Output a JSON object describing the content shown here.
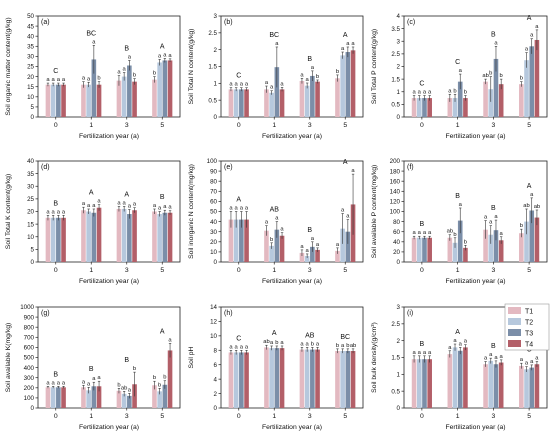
{
  "legend": [
    "T1",
    "T2",
    "T3",
    "T4"
  ],
  "colors": {
    "T1": "#e3b9c1",
    "T2": "#b6c8dd",
    "T3": "#7b8ea8",
    "T4": "#b35f68"
  },
  "chart_data": [
    {
      "type": "bar",
      "label": "(a)",
      "ylabel": "Soil organic matter content(g/kg)",
      "xlabel": "Fertilization year (a)",
      "categories": [
        "0",
        "1",
        "3",
        "5"
      ],
      "ylim": [
        0,
        50
      ],
      "yticks": [
        0,
        5,
        10,
        15,
        20,
        25,
        30,
        35,
        40,
        45,
        50
      ],
      "series": [
        {
          "name": "T1",
          "values": [
            16.0,
            16.0,
            18.0,
            18.5
          ],
          "errors": [
            0.8,
            1.5,
            2.5,
            1.5
          ]
        },
        {
          "name": "T2",
          "values": [
            16.0,
            16.0,
            20.0,
            27.0
          ],
          "errors": [
            0.8,
            1.2,
            2.0,
            1.5
          ]
        },
        {
          "name": "T3",
          "values": [
            16.0,
            28.5,
            25.5,
            28.0
          ],
          "errors": [
            0.8,
            7.0,
            2.5,
            1.0
          ]
        },
        {
          "name": "T4",
          "values": [
            16.0,
            16.0,
            17.5,
            28.0
          ],
          "errors": [
            0.8,
            1.5,
            1.5,
            0.8
          ]
        }
      ],
      "sig_letters": [
        [
          "a",
          "a",
          "a",
          "a"
        ],
        [
          "a",
          "a",
          "a",
          "b"
        ],
        [
          "a",
          "a",
          "a",
          "b"
        ],
        [
          "b",
          "a",
          "a",
          "a"
        ]
      ],
      "group_letters": [
        "C",
        "BC",
        "B",
        "A"
      ]
    },
    {
      "type": "bar",
      "label": "(b)",
      "ylabel": "Soil Total N content(g/kg)",
      "xlabel": "Fertilization year (a)",
      "categories": [
        "0",
        "1",
        "3",
        "5"
      ],
      "ylim": [
        0,
        3.0
      ],
      "yticks": [
        0,
        0.5,
        1.0,
        1.5,
        2.0,
        2.5,
        3.0
      ],
      "series": [
        {
          "name": "T1",
          "values": [
            0.82,
            0.82,
            1.07,
            1.15
          ],
          "errors": [
            0.05,
            0.1,
            0.08,
            0.1
          ]
        },
        {
          "name": "T2",
          "values": [
            0.82,
            0.72,
            0.93,
            1.83
          ],
          "errors": [
            0.05,
            0.06,
            0.08,
            0.1
          ]
        },
        {
          "name": "T3",
          "values": [
            0.82,
            1.48,
            1.22,
            1.93
          ],
          "errors": [
            0.05,
            0.6,
            0.15,
            0.15
          ]
        },
        {
          "name": "T4",
          "values": [
            0.82,
            0.82,
            1.05,
            1.98
          ],
          "errors": [
            0.05,
            0.06,
            0.05,
            0.1
          ]
        }
      ],
      "sig_letters": [
        [
          "a",
          "a",
          "a",
          "a"
        ],
        [
          "a",
          "a",
          "a",
          "a"
        ],
        [
          "a",
          "a",
          "a",
          "b"
        ],
        [
          "b",
          "a",
          "a",
          "a"
        ]
      ],
      "group_letters": [
        "C",
        "BC",
        "B",
        "A"
      ]
    },
    {
      "type": "bar",
      "label": "(c)",
      "ylabel": "Soil Total P content(g/kg)",
      "xlabel": "Fertilization year (a)",
      "categories": [
        "0",
        "1",
        "3",
        "5"
      ],
      "ylim": [
        0,
        4.0
      ],
      "yticks": [
        0,
        0.5,
        1.0,
        1.5,
        2.0,
        2.5,
        3.0,
        3.5,
        4.0
      ],
      "series": [
        {
          "name": "T1",
          "values": [
            0.75,
            0.75,
            1.4,
            1.3
          ],
          "errors": [
            0.1,
            0.15,
            0.1,
            0.1
          ]
        },
        {
          "name": "T2",
          "values": [
            0.75,
            0.75,
            1.1,
            2.25
          ],
          "errors": [
            0.1,
            0.15,
            0.5,
            0.3
          ]
        },
        {
          "name": "T3",
          "values": [
            0.75,
            1.4,
            2.3,
            2.8
          ],
          "errors": [
            0.1,
            0.3,
            0.5,
            0.3
          ]
        },
        {
          "name": "T4",
          "values": [
            0.75,
            0.75,
            1.3,
            3.05
          ],
          "errors": [
            0.1,
            0.1,
            0.2,
            0.4
          ]
        }
      ],
      "sig_letters": [
        [
          "a",
          "a",
          "a",
          "a"
        ],
        [
          "a",
          "b",
          "a",
          "b"
        ],
        [
          "ab",
          "b",
          "a",
          "b"
        ],
        [
          "b",
          "a",
          "a",
          "a"
        ]
      ],
      "group_letters": [
        "C",
        "C",
        "B",
        "A"
      ]
    },
    {
      "type": "bar",
      "label": "(d)",
      "ylabel": "Soil Total K content(g/kg)",
      "xlabel": "Fertilization year (a)",
      "categories": [
        "0",
        "1",
        "3",
        "5"
      ],
      "ylim": [
        0,
        40
      ],
      "yticks": [
        0,
        5,
        10,
        15,
        20,
        25,
        30,
        35,
        40
      ],
      "series": [
        {
          "name": "T1",
          "values": [
            17.5,
            20.5,
            21.0,
            20.0
          ],
          "errors": [
            1.0,
            1.2,
            1.0,
            1.0
          ]
        },
        {
          "name": "T2",
          "values": [
            17.5,
            20.0,
            21.0,
            19.0
          ],
          "errors": [
            1.0,
            1.0,
            1.0,
            1.0
          ]
        },
        {
          "name": "T3",
          "values": [
            17.5,
            19.5,
            19.0,
            19.5
          ],
          "errors": [
            1.0,
            1.5,
            1.8,
            1.0
          ]
        },
        {
          "name": "T4",
          "values": [
            17.5,
            21.5,
            20.5,
            19.5
          ],
          "errors": [
            1.0,
            1.2,
            1.0,
            0.8
          ]
        }
      ],
      "sig_letters": [
        [
          "a",
          "a",
          "a",
          "a"
        ],
        [
          "a",
          "a",
          "a",
          "a"
        ],
        [
          "a",
          "a",
          "a",
          "a"
        ],
        [
          "a",
          "a",
          "a",
          "a"
        ]
      ],
      "group_letters": [
        "B",
        "A",
        "A",
        "B"
      ]
    },
    {
      "type": "bar",
      "label": "(e)",
      "ylabel": "Soil inorganic N content(mg/kg)",
      "xlabel": "Fertilization year (a)",
      "categories": [
        "0",
        "1",
        "3",
        "5"
      ],
      "ylim": [
        0,
        100
      ],
      "yticks": [
        0,
        10,
        20,
        30,
        40,
        50,
        60,
        70,
        80,
        90,
        100
      ],
      "series": [
        {
          "name": "T1",
          "values": [
            42,
            31,
            9,
            11
          ],
          "errors": [
            8,
            5,
            3,
            3
          ]
        },
        {
          "name": "T2",
          "values": [
            42,
            16,
            6,
            33
          ],
          "errors": [
            8,
            3,
            2,
            15
          ]
        },
        {
          "name": "T3",
          "values": [
            42,
            32,
            15,
            30
          ],
          "errors": [
            8,
            8,
            5,
            12
          ]
        },
        {
          "name": "T4",
          "values": [
            42,
            26,
            12,
            57
          ],
          "errors": [
            8,
            3,
            2,
            30
          ]
        }
      ],
      "sig_letters": [
        [
          "a",
          "a",
          "a",
          "a"
        ],
        [
          "a",
          "b",
          "a",
          "a"
        ],
        [
          "a",
          "a",
          "a",
          "a"
        ],
        [
          "a",
          "a",
          "a",
          "a"
        ]
      ],
      "group_letters": [
        "A",
        "AB",
        "B",
        "A"
      ]
    },
    {
      "type": "bar",
      "label": "(f)",
      "ylabel": "Soil available P content(mg/kg)",
      "xlabel": "Fertilization year (a)",
      "categories": [
        "0",
        "1",
        "3",
        "5"
      ],
      "ylim": [
        0,
        200
      ],
      "yticks": [
        0,
        20,
        40,
        60,
        80,
        100,
        120,
        140,
        160,
        180,
        200
      ],
      "series": [
        {
          "name": "T1",
          "values": [
            48,
            48,
            64,
            57
          ],
          "errors": [
            3,
            6,
            18,
            8
          ]
        },
        {
          "name": "T2",
          "values": [
            48,
            38,
            54,
            80
          ],
          "errors": [
            3,
            10,
            18,
            25
          ]
        },
        {
          "name": "T3",
          "values": [
            48,
            82,
            63,
            102
          ],
          "errors": [
            3,
            25,
            20,
            25
          ]
        },
        {
          "name": "T4",
          "values": [
            48,
            28,
            43,
            88
          ],
          "errors": [
            3,
            5,
            7,
            15
          ]
        }
      ],
      "sig_letters": [
        [
          "a",
          "a",
          "a",
          "a"
        ],
        [
          "ab",
          "b",
          "a",
          "b"
        ],
        [
          "a",
          "a",
          "a",
          "a"
        ],
        [
          "b",
          "ab",
          "a",
          "ab"
        ]
      ],
      "group_letters": [
        "B",
        "B",
        "B",
        "A"
      ]
    },
    {
      "type": "bar",
      "label": "(g)",
      "ylabel": "Soil available K(mg/kg)",
      "xlabel": "Fertilization year (a)",
      "categories": [
        "0",
        "1",
        "3",
        "5"
      ],
      "ylim": [
        0,
        1000
      ],
      "yticks": [
        0,
        100,
        200,
        300,
        400,
        500,
        600,
        700,
        800,
        900,
        1000
      ],
      "series": [
        {
          "name": "T1",
          "values": [
            205,
            205,
            170,
            225
          ],
          "errors": [
            10,
            20,
            25,
            40
          ]
        },
        {
          "name": "T2",
          "values": [
            205,
            175,
            140,
            165
          ],
          "errors": [
            10,
            30,
            25,
            30
          ]
        },
        {
          "name": "T3",
          "values": [
            205,
            215,
            120,
            230
          ],
          "errors": [
            10,
            40,
            25,
            40
          ]
        },
        {
          "name": "T4",
          "values": [
            205,
            215,
            235,
            570
          ],
          "errors": [
            10,
            50,
            120,
            70
          ]
        }
      ],
      "sig_letters": [
        [
          "a",
          "a",
          "a",
          "a"
        ],
        [
          "a",
          "a",
          "a",
          "a"
        ],
        [
          "b",
          "ab",
          "a",
          "b"
        ],
        [
          "b",
          "b",
          "b",
          "a"
        ]
      ],
      "group_letters": [
        "B",
        "B",
        "B",
        "A"
      ]
    },
    {
      "type": "bar",
      "label": "(h)",
      "ylabel": "Soil pH",
      "xlabel": "Fertilization year (a)",
      "categories": [
        "0",
        "1",
        "3",
        "5"
      ],
      "ylim": [
        0,
        14
      ],
      "yticks": [
        0,
        2,
        4,
        6,
        8,
        10,
        12,
        14
      ],
      "series": [
        {
          "name": "T1",
          "values": [
            7.7,
            8.4,
            8.1,
            7.9
          ],
          "errors": [
            0.3,
            0.3,
            0.3,
            0.3
          ]
        },
        {
          "name": "T2",
          "values": [
            7.7,
            8.3,
            8.1,
            7.9
          ],
          "errors": [
            0.3,
            0.3,
            0.3,
            0.3
          ]
        },
        {
          "name": "T3",
          "values": [
            7.7,
            8.3,
            8.1,
            7.9
          ],
          "errors": [
            0.3,
            0.3,
            0.3,
            0.3
          ]
        },
        {
          "name": "T4",
          "values": [
            7.7,
            8.3,
            8.1,
            7.9
          ],
          "errors": [
            0.3,
            0.3,
            0.3,
            0.3
          ]
        }
      ],
      "sig_letters": [
        [
          "a",
          "a",
          "a",
          "a"
        ],
        [
          "ab",
          "a",
          "b",
          "a"
        ],
        [
          "a",
          "a",
          "b",
          "a"
        ],
        [
          "b",
          "a",
          "b",
          "ab"
        ]
      ],
      "group_letters": [
        "C",
        "A",
        "AB",
        "BC"
      ]
    },
    {
      "type": "bar",
      "label": "(i)",
      "ylabel": "Soil bulk density(g/cm³)",
      "xlabel": "Fertilization year (a)",
      "categories": [
        "0",
        "1",
        "3",
        "5"
      ],
      "ylim": [
        0,
        3.0
      ],
      "yticks": [
        0,
        0.5,
        1.0,
        1.5,
        2.0,
        2.5,
        3.0
      ],
      "series": [
        {
          "name": "T1",
          "values": [
            1.45,
            1.6,
            1.3,
            1.25
          ],
          "errors": [
            0.1,
            0.1,
            0.08,
            0.08
          ]
        },
        {
          "name": "T2",
          "values": [
            1.45,
            1.8,
            1.4,
            1.15
          ],
          "errors": [
            0.1,
            0.1,
            0.08,
            0.08
          ]
        },
        {
          "name": "T3",
          "values": [
            1.45,
            1.7,
            1.3,
            1.2
          ],
          "errors": [
            0.1,
            0.1,
            0.1,
            0.08
          ]
        },
        {
          "name": "T4",
          "values": [
            1.45,
            1.8,
            1.35,
            1.3
          ],
          "errors": [
            0.1,
            0.08,
            0.08,
            0.08
          ]
        }
      ],
      "sig_letters": [
        [
          "a",
          "a",
          "a",
          "a"
        ],
        [
          "a",
          "a",
          "a",
          "a"
        ],
        [
          "a",
          "a",
          "a",
          "a"
        ],
        [
          "a",
          "a",
          "a",
          "a"
        ]
      ],
      "group_letters": [
        "B",
        "A",
        "B",
        "C"
      ]
    }
  ]
}
